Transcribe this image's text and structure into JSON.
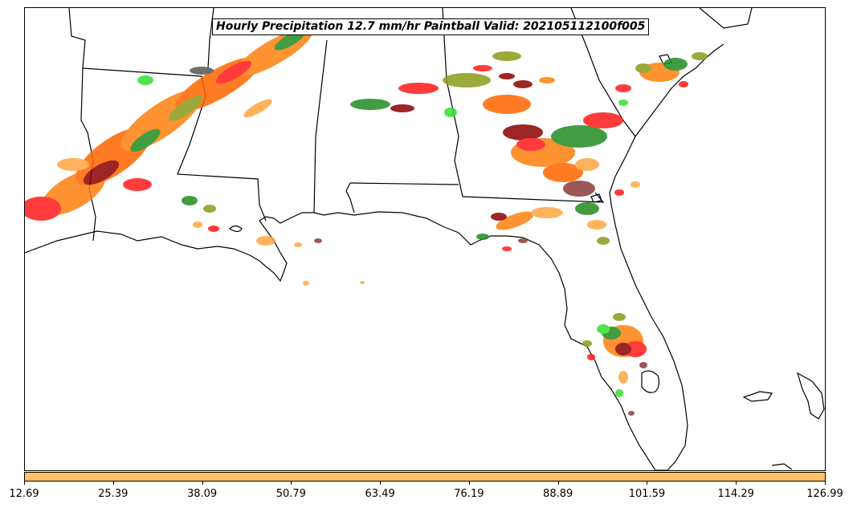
{
  "title": "Hourly Precipitation 12.7 mm/hr Paintball Valid: 202105112100f005",
  "colorbar": {
    "color": "#ffc266",
    "ticks": [
      "12.69",
      "25.39",
      "38.09",
      "50.79",
      "63.49",
      "76.19",
      "88.89",
      "101.59",
      "114.29",
      "126.99"
    ]
  },
  "palette": {
    "orange": "#ff7f0e",
    "dark_orange": "#ff6600",
    "light_orange": "#ffa640",
    "red": "#ff1a1a",
    "dark_red": "#8b0000",
    "green": "#228b22",
    "bright_green": "#33dd33",
    "olive": "#8b9b1a",
    "brown": "#8b3a3a",
    "gray": "#555555"
  }
}
